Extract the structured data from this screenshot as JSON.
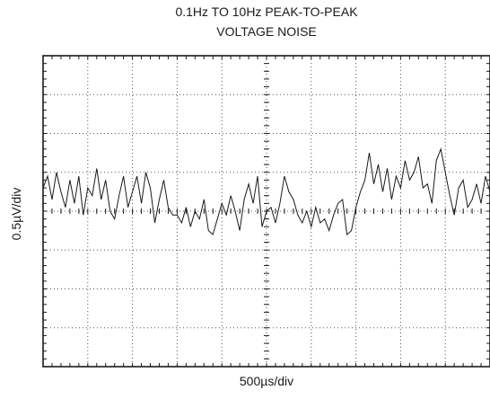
{
  "chart_data": {
    "type": "line",
    "title_lines": [
      "0.1Hz TO 10Hz PEAK-TO-PEAK",
      "VOLTAGE NOISE"
    ],
    "xlabel": "500µs/div",
    "ylabel": "0.5µV/div",
    "grid": true,
    "divisions": {
      "x": 10,
      "y": 8
    },
    "xlim": [
      0,
      10
    ],
    "ylim": [
      -4,
      4
    ],
    "series": [
      {
        "color": "#1a1a1a",
        "x": [
          0,
          0.1,
          0.2,
          0.3,
          0.4,
          0.5,
          0.6,
          0.7,
          0.8,
          0.9,
          1.0,
          1.1,
          1.2,
          1.3,
          1.4,
          1.5,
          1.6,
          1.7,
          1.8,
          1.9,
          2.0,
          2.1,
          2.2,
          2.3,
          2.4,
          2.5,
          2.6,
          2.7,
          2.8,
          2.9,
          3.0,
          3.1,
          3.2,
          3.3,
          3.4,
          3.5,
          3.6,
          3.7,
          3.8,
          3.9,
          4.0,
          4.1,
          4.2,
          4.3,
          4.4,
          4.5,
          4.6,
          4.7,
          4.8,
          4.9,
          5.0,
          5.1,
          5.2,
          5.3,
          5.4,
          5.5,
          5.6,
          5.7,
          5.8,
          5.9,
          6.0,
          6.1,
          6.2,
          6.3,
          6.4,
          6.5,
          6.6,
          6.7,
          6.8,
          6.9,
          7.0,
          7.1,
          7.2,
          7.3,
          7.4,
          7.5,
          7.6,
          7.7,
          7.8,
          7.9,
          8.0,
          8.1,
          8.2,
          8.3,
          8.4,
          8.5,
          8.6,
          8.7,
          8.8,
          8.9,
          9.0,
          9.1,
          9.2,
          9.3,
          9.4,
          9.5,
          9.6,
          9.7,
          9.8,
          9.9,
          10.0
        ],
        "values": [
          0.6,
          0.9,
          0.3,
          1.0,
          0.5,
          0.1,
          0.8,
          0.2,
          0.9,
          -0.1,
          0.6,
          0.4,
          1.1,
          0.3,
          0.8,
          0.0,
          -0.2,
          0.4,
          0.9,
          0.1,
          0.5,
          0.9,
          0.2,
          1.0,
          0.6,
          -0.3,
          0.3,
          0.8,
          0.1,
          -0.1,
          -0.1,
          -0.3,
          0.1,
          -0.4,
          0.0,
          -0.2,
          0.3,
          -0.5,
          -0.6,
          -0.2,
          0.2,
          -0.1,
          0.4,
          0.0,
          -0.5,
          0.3,
          0.7,
          0.2,
          0.9,
          -0.4,
          0.0,
          0.1,
          -0.3,
          0.2,
          0.9,
          0.5,
          0.3,
          -0.1,
          -0.3,
          0.0,
          -0.4,
          0.1,
          -0.3,
          -0.2,
          -0.5,
          -0.1,
          0.2,
          0.3,
          -0.6,
          -0.5,
          0.1,
          0.5,
          0.8,
          1.5,
          0.7,
          1.2,
          0.5,
          1.1,
          0.3,
          0.9,
          0.6,
          1.3,
          0.8,
          1.0,
          1.4,
          0.6,
          0.7,
          0.2,
          1.3,
          1.6,
          1.0,
          0.4,
          -0.1,
          0.6,
          0.8,
          0.1,
          0.3,
          0.7,
          0.2,
          0.9,
          0.5
        ]
      }
    ]
  }
}
